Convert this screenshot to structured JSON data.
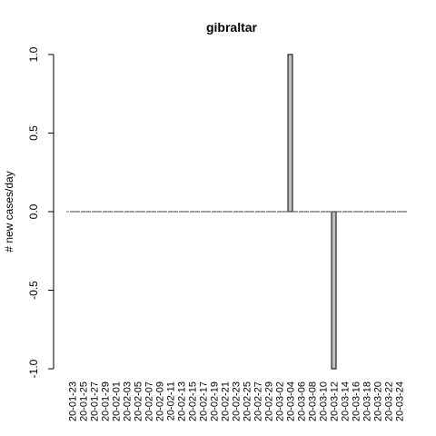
{
  "chart_data": {
    "type": "bar",
    "title": "gibraltar",
    "xlabel": "",
    "ylabel": "# new cases/day",
    "ylim": [
      -1.0,
      1.0
    ],
    "yticks": [
      "-1.0",
      "-0.5",
      "0.0",
      "0.5",
      "1.0"
    ],
    "x_tick_labels": [
      "20-01-23",
      "20-01-25",
      "20-01-27",
      "20-01-29",
      "20-02-01",
      "20-02-03",
      "20-02-05",
      "20-02-07",
      "20-02-09",
      "20-02-11",
      "20-02-13",
      "20-02-15",
      "20-02-17",
      "20-02-19",
      "20-02-21",
      "20-02-23",
      "20-02-25",
      "20-02-27",
      "20-02-29",
      "20-03-02",
      "20-03-04",
      "20-03-06",
      "20-03-08",
      "20-03-10",
      "20-03-12",
      "20-03-14",
      "20-03-16",
      "20-03-18",
      "20-03-20",
      "20-03-22",
      "20-03-24"
    ],
    "categories": [
      "20-01-23",
      "20-01-24",
      "20-01-25",
      "20-01-26",
      "20-01-27",
      "20-01-28",
      "20-01-29",
      "20-01-30",
      "20-02-01",
      "20-02-02",
      "20-02-03",
      "20-02-04",
      "20-02-05",
      "20-02-06",
      "20-02-07",
      "20-02-08",
      "20-02-09",
      "20-02-10",
      "20-02-11",
      "20-02-12",
      "20-02-13",
      "20-02-14",
      "20-02-15",
      "20-02-16",
      "20-02-17",
      "20-02-18",
      "20-02-19",
      "20-02-20",
      "20-02-21",
      "20-02-22",
      "20-02-23",
      "20-02-24",
      "20-02-25",
      "20-02-26",
      "20-02-27",
      "20-02-28",
      "20-02-29",
      "20-03-01",
      "20-03-02",
      "20-03-03",
      "20-03-04",
      "20-03-05",
      "20-03-06",
      "20-03-07",
      "20-03-08",
      "20-03-09",
      "20-03-10",
      "20-03-11",
      "20-03-12",
      "20-03-13",
      "20-03-14",
      "20-03-15",
      "20-03-16",
      "20-03-17",
      "20-03-18",
      "20-03-19",
      "20-03-20",
      "20-03-21",
      "20-03-22",
      "20-03-23",
      "20-03-24",
      "20-03-25"
    ],
    "values": [
      0,
      0,
      0,
      0,
      0,
      0,
      0,
      0,
      0,
      0,
      0,
      0,
      0,
      0,
      0,
      0,
      0,
      0,
      0,
      0,
      0,
      0,
      0,
      0,
      0,
      0,
      0,
      0,
      0,
      0,
      0,
      0,
      0,
      0,
      0,
      0,
      0,
      0,
      0,
      0,
      1,
      0,
      0,
      0,
      0,
      0,
      0,
      0,
      -1,
      0,
      0,
      0,
      0,
      0,
      0,
      0,
      0,
      0,
      0,
      0,
      0,
      0
    ],
    "bar_color": "#bebebe",
    "grid": false,
    "legend": "none"
  }
}
